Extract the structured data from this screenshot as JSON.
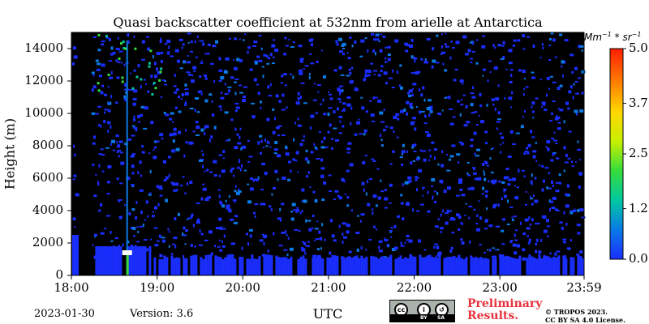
{
  "chart_data": {
    "type": "heatmap",
    "title": "Quasi backscatter coefficient at 532nm from arielle at Antarctica",
    "xlabel": "UTC",
    "ylabel": "Height (m)",
    "x_ticks": [
      "18:00",
      "19:00",
      "20:00",
      "21:00",
      "22:00",
      "23:00",
      "23:59"
    ],
    "xlim": [
      "18:00",
      "23:59"
    ],
    "y_ticks": [
      0,
      2000,
      4000,
      6000,
      8000,
      10000,
      12000,
      14000
    ],
    "ylim": [
      0,
      15000
    ],
    "colorbar": {
      "label": "Mm−1 * sr−1",
      "unit_base": "Mm",
      "unit_exp1": "−1",
      "unit_mid": " * sr",
      "unit_exp2": "−1",
      "ticks": [
        "0.0",
        "1.2",
        "2.5",
        "3.7",
        "5.0"
      ],
      "range": [
        0.0,
        5.0
      ],
      "colors": [
        "#1a2eff",
        "#0a7ae6",
        "#00c8a0",
        "#36dc3c",
        "#c8f000",
        "#ffd700",
        "#ff7800",
        "#ff1e00"
      ]
    },
    "background_color": "#000000",
    "features": {
      "noise_level": "low (blue speckle throughout)",
      "low_layer_height_m": [
        0,
        1800
      ],
      "low_layer_start": "18:15",
      "bright_spot_time": "18:39",
      "bright_spot_height_m": 1400
    }
  },
  "footer": {
    "date": "2023-01-30",
    "version": "Version: 3.6",
    "preliminary_line1": "Preliminary",
    "preliminary_line2": "Results.",
    "copyright_line1": "© TROPOS 2023.",
    "copyright_line2": "CC BY SA 4.0 License.",
    "license_badge": {
      "by": "BY",
      "sa": "SA"
    }
  }
}
